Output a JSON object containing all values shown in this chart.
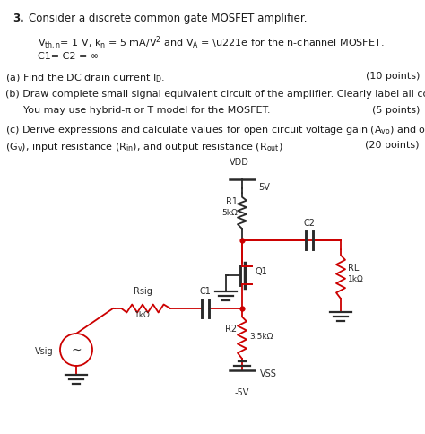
{
  "title_num": "3.",
  "title_text": "Consider a discrete common gate MOSFET amplifier.",
  "param_line1": "V",
  "param_sub_thn": "th,n",
  "param_line2": " = 1 V, k",
  "param_sub_n": "n",
  "param_line3": " = 5 mA/V",
  "param_sup_2": "2",
  "param_line4": " and V",
  "param_sub_A": "A",
  "param_line5": " = ∞ for the n-channel MOSFET.",
  "cap_line": "C1= C2 = ∞",
  "part_a_text": "(a) Find the DC drain current I",
  "part_a_sub": "D",
  "part_a_end": ".",
  "part_a_pts": "(10 points)",
  "part_b1": "(b) Draw complete small signal equivalent circuit of the amplifier. Clearly label all components.",
  "part_b2": "     You may use hybrid-π or T model for the MOSFET.",
  "part_b2_pts": "(5 points)",
  "part_c1": "(c) Derive expressions and calculate values for open circuit voltage gain (A",
  "part_c1_sub": "vo",
  "part_c1_end": ") and overall voltage gain",
  "part_c2_start": "(G",
  "part_c2_sub1": "v",
  "part_c2_mid": "), input resistance (R",
  "part_c2_sub2": "in",
  "part_c2_mid2": "), and output resistance (R",
  "part_c2_sub3": "out",
  "part_c2_end": ")",
  "part_c2_pts": "(20 points)",
  "bg_color": "#ffffff",
  "text_color": "#1a1a1a",
  "red_color": "#cc0000",
  "blk_color": "#2a2a2a"
}
